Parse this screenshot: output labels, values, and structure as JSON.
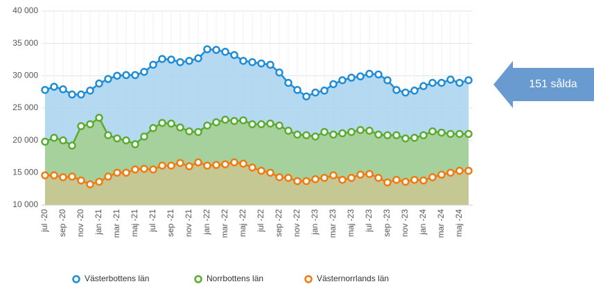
{
  "chart_data": {
    "type": "line",
    "categories": [
      "jul -20",
      null,
      "sep -20",
      null,
      "nov -20",
      null,
      "jan -21",
      null,
      "mar -21",
      null,
      "maj -21",
      null,
      "jul -21",
      null,
      "sep -21",
      null,
      "nov -21",
      null,
      "jan -22",
      null,
      "mar -22",
      null,
      "maj -22",
      null,
      "jul -22",
      null,
      "sep -22",
      null,
      "nov -22",
      null,
      "jan -23",
      null,
      "mar -23",
      null,
      "maj -23",
      null,
      "jul -23",
      null,
      "sep -23",
      null,
      "nov -23",
      null,
      "jan -24",
      null,
      "mar -24",
      null,
      "maj -24",
      null
    ],
    "series": [
      {
        "name": "Västerbottens län",
        "color": "#1f8dd6",
        "fill": "#a9d2f0",
        "values": [
          27800,
          28300,
          27900,
          27100,
          27100,
          27700,
          28800,
          29500,
          30000,
          30100,
          30100,
          30600,
          31700,
          32600,
          32500,
          32100,
          32300,
          32700,
          34100,
          34000,
          33700,
          33200,
          32300,
          32100,
          31900,
          31700,
          30500,
          28900,
          27800,
          26800,
          27400,
          27700,
          28700,
          29300,
          29700,
          29900,
          30300,
          30200,
          29300,
          27800,
          27400,
          27700,
          28400,
          28900,
          28900,
          29400,
          28900,
          29300
        ]
      },
      {
        "name": "Norrbottens län",
        "color": "#5aac2e",
        "fill": "#a3cf8e",
        "values": [
          19800,
          20400,
          20000,
          19200,
          22200,
          22500,
          23500,
          20800,
          20300,
          20000,
          19400,
          20600,
          21900,
          22700,
          22600,
          22000,
          21400,
          21300,
          22300,
          22800,
          23200,
          23000,
          23100,
          22500,
          22500,
          22600,
          22300,
          21500,
          20900,
          20800,
          20600,
          21300,
          20900,
          21100,
          21300,
          21600,
          21500,
          20900,
          20800,
          20800,
          20300,
          20400,
          20800,
          21400,
          21200,
          21000,
          21000,
          21000
        ]
      },
      {
        "name": "Västernorrlands län",
        "color": "#f07a10",
        "fill": "#cbc793",
        "values": [
          14600,
          14600,
          14300,
          14400,
          13800,
          13200,
          13600,
          14400,
          15000,
          15000,
          15500,
          15600,
          15500,
          16100,
          16100,
          16500,
          16000,
          16600,
          16100,
          16200,
          16300,
          16600,
          16400,
          15800,
          15300,
          15000,
          14300,
          14200,
          13700,
          13700,
          14000,
          14200,
          14600,
          13900,
          14200,
          14700,
          14800,
          14200,
          13500,
          13900,
          13600,
          13900,
          13800,
          14300,
          14700,
          15000,
          15300,
          15300
        ]
      }
    ],
    "ylim": [
      10000,
      40000
    ],
    "yticks": [
      {
        "value": 10000,
        "label": "10 000"
      },
      {
        "value": 15000,
        "label": "15 000"
      },
      {
        "value": 20000,
        "label": "20 000"
      },
      {
        "value": 25000,
        "label": "25 000"
      },
      {
        "value": 30000,
        "label": "30 000"
      },
      {
        "value": 35000,
        "label": "35 000"
      },
      {
        "value": 40000,
        "label": "40 000"
      }
    ],
    "grid": true,
    "legend": "bottom",
    "annotation": "151 sålda",
    "annotation_color": "#6a9bd0"
  }
}
